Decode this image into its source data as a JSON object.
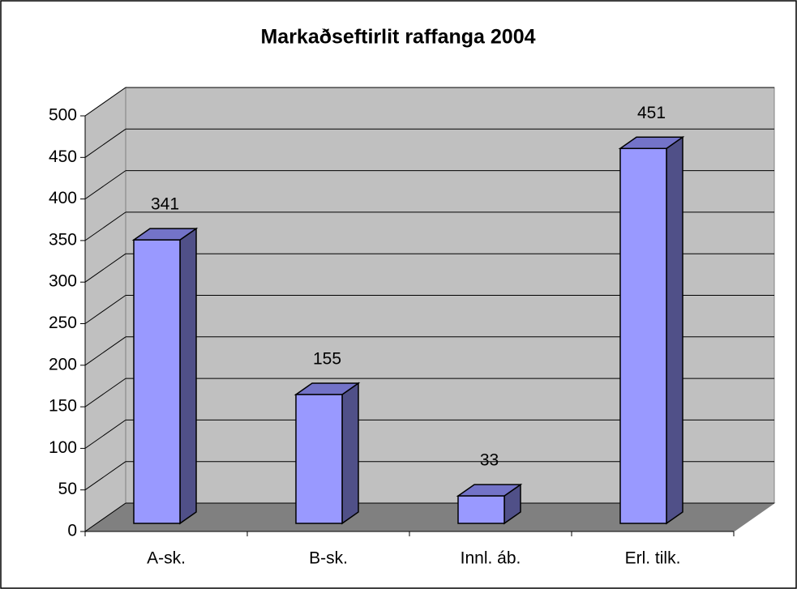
{
  "chart_data": {
    "type": "bar3d",
    "title": "Markaðseftirlit raffanga 2004",
    "categories": [
      "A-sk.",
      "B-sk.",
      "Innl. áb.",
      "Erl. tilk."
    ],
    "values": [
      341,
      155,
      33,
      451
    ],
    "color": "#9999ff",
    "ylim": [
      0,
      500
    ],
    "yticks": [
      0,
      50,
      100,
      150,
      200,
      250,
      300,
      350,
      400,
      450,
      500
    ],
    "grid": true
  }
}
